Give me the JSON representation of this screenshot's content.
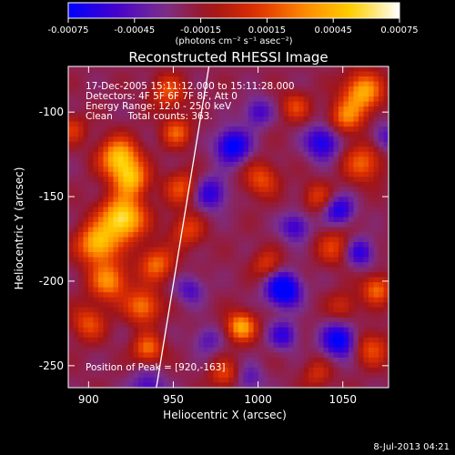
{
  "chart_data": {
    "type": "heatmap",
    "title": "Reconstructed RHESSI Image",
    "xlabel": "Heliocentric X (arcsec)",
    "ylabel": "Heliocentric Y (arcsec)",
    "xlim": [
      888,
      1077
    ],
    "ylim": [
      -263,
      -73
    ],
    "x_ticks": [
      900,
      950,
      1000,
      1050
    ],
    "y_ticks": [
      -100,
      -150,
      -200,
      -250
    ],
    "colorbar": {
      "range": [
        -0.00075,
        0.00075
      ],
      "ticks": [
        "-0.00075",
        "-0.00045",
        "-0.00015",
        "0.00015",
        "0.00045",
        "0.00075"
      ],
      "unit_label": "(photons cm⁻² s⁻¹ asec⁻²)",
      "colors": [
        "#0000ff",
        "#4400cc",
        "#7a2f8f",
        "#a01418",
        "#e03000",
        "#ff8a00",
        "#ffd000",
        "#ffffff"
      ]
    },
    "annotations": {
      "time_range": "17-Dec-2005 15:11:12.000 to 15:11:28.000",
      "detectors": "Detectors: 4F 5F 6F 7F 8F, Att 0",
      "energy": "Energy Range: 12.0 - 25.0 keV",
      "method": "Clean     Total counts: 363.",
      "peak": "Position of Peak = [920,-163]"
    },
    "peak": {
      "x": 920,
      "y": -163
    },
    "limb_line": [
      [
        940,
        -263
      ],
      [
        971,
        -73
      ]
    ],
    "blobs": [
      {
        "x": 920,
        "y": -163,
        "v": 1.0,
        "s": 9
      },
      {
        "x": 918,
        "y": -127,
        "v": 0.85,
        "s": 8
      },
      {
        "x": 905,
        "y": -178,
        "v": 0.8,
        "s": 8
      },
      {
        "x": 925,
        "y": -140,
        "v": 0.7,
        "s": 7
      },
      {
        "x": 912,
        "y": -200,
        "v": 0.65,
        "s": 8
      },
      {
        "x": 932,
        "y": -215,
        "v": 0.6,
        "s": 7
      },
      {
        "x": 940,
        "y": -190,
        "v": 0.55,
        "s": 7
      },
      {
        "x": 952,
        "y": -112,
        "v": 0.5,
        "s": 6
      },
      {
        "x": 947,
        "y": -88,
        "v": 0.45,
        "s": 7
      },
      {
        "x": 955,
        "y": -145,
        "v": 0.45,
        "s": 7
      },
      {
        "x": 958,
        "y": -170,
        "v": 0.4,
        "s": 7
      },
      {
        "x": 900,
        "y": -225,
        "v": 0.45,
        "s": 7
      },
      {
        "x": 935,
        "y": -240,
        "v": 0.55,
        "s": 6
      },
      {
        "x": 990,
        "y": -227,
        "v": 0.75,
        "s": 6
      },
      {
        "x": 1002,
        "y": -140,
        "v": 0.45,
        "s": 7
      },
      {
        "x": 1035,
        "y": -150,
        "v": 0.35,
        "s": 6
      },
      {
        "x": 1045,
        "y": -180,
        "v": 0.4,
        "s": 7
      },
      {
        "x": 1062,
        "y": -130,
        "v": 0.5,
        "s": 8
      },
      {
        "x": 1062,
        "y": -88,
        "v": 0.75,
        "s": 8
      },
      {
        "x": 1052,
        "y": -103,
        "v": 0.55,
        "s": 7
      },
      {
        "x": 1070,
        "y": -205,
        "v": 0.55,
        "s": 6
      },
      {
        "x": 1067,
        "y": -240,
        "v": 0.45,
        "s": 7
      },
      {
        "x": 1035,
        "y": -255,
        "v": 0.3,
        "s": 6
      },
      {
        "x": 1022,
        "y": -97,
        "v": 0.4,
        "s": 6
      },
      {
        "x": 1005,
        "y": -190,
        "v": 0.35,
        "s": 6
      },
      {
        "x": 980,
        "y": -255,
        "v": 0.4,
        "s": 6
      },
      {
        "x": 890,
        "y": -110,
        "v": 0.35,
        "s": 6
      },
      {
        "x": 1050,
        "y": -215,
        "v": 0.3,
        "s": 6
      },
      {
        "x": 985,
        "y": -120,
        "v": -0.7,
        "s": 7
      },
      {
        "x": 1015,
        "y": -205,
        "v": -0.85,
        "s": 7
      },
      {
        "x": 1048,
        "y": -235,
        "v": -0.7,
        "s": 7
      },
      {
        "x": 1038,
        "y": -118,
        "v": -0.6,
        "s": 7
      },
      {
        "x": 1048,
        "y": -158,
        "v": -0.55,
        "s": 6
      },
      {
        "x": 972,
        "y": -148,
        "v": -0.5,
        "s": 7
      },
      {
        "x": 1060,
        "y": -183,
        "v": -0.5,
        "s": 6
      },
      {
        "x": 1015,
        "y": -232,
        "v": -0.45,
        "s": 6
      },
      {
        "x": 1022,
        "y": -168,
        "v": -0.45,
        "s": 6
      },
      {
        "x": 935,
        "y": -263,
        "v": -0.4,
        "s": 7
      },
      {
        "x": 1000,
        "y": -100,
        "v": -0.4,
        "s": 6
      },
      {
        "x": 960,
        "y": -205,
        "v": -0.35,
        "s": 6
      },
      {
        "x": 970,
        "y": -235,
        "v": -0.3,
        "s": 6
      },
      {
        "x": 1075,
        "y": -115,
        "v": -0.35,
        "s": 6
      },
      {
        "x": 995,
        "y": -258,
        "v": -0.3,
        "s": 6
      }
    ]
  },
  "footer": {
    "date": "8-Jul-2013 04:21"
  }
}
